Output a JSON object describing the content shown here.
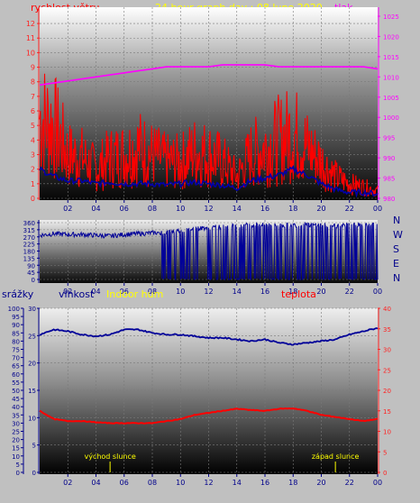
{
  "header": {
    "left_label": "rychlost větru",
    "title": "24 hour graph day : 08 June 2020",
    "right_label": "tlak"
  },
  "colors": {
    "background": "#c0c0c0",
    "wind": "#ff0000",
    "gust_line": "#0000aa",
    "pressure": "#ff00ff",
    "title": "#ffff00",
    "direction": "#000099",
    "temperature": "#ff0000",
    "humidity": "#000099",
    "axis_blue": "#00008b",
    "tick_red": "#ff2222",
    "sun": "#ffff00"
  },
  "time_axis": {
    "ticks": [
      "02",
      "04",
      "06",
      "08",
      "10",
      "12",
      "14",
      "16",
      "18",
      "20",
      "22",
      "00"
    ]
  },
  "chart_data": [
    {
      "type": "line",
      "xlabel": "",
      "ylabel": "rychlost větru",
      "yticks_left": [
        "0",
        "1",
        "2",
        "3",
        "4",
        "5",
        "6",
        "7",
        "8",
        "9",
        "10",
        "11",
        "12"
      ],
      "yticks_right": [
        "980",
        "985",
        "990",
        "995",
        "1000",
        "1005",
        "1010",
        "1015",
        "1020",
        "1025"
      ],
      "ylim": [
        0,
        12.5
      ],
      "y2lim": [
        980,
        1025
      ],
      "x": [
        0,
        1,
        2,
        3,
        4,
        5,
        6,
        7,
        8,
        9,
        10,
        11,
        12,
        13,
        14,
        15,
        16,
        17,
        18,
        19,
        20,
        21,
        22,
        23,
        24
      ],
      "series": [
        {
          "name": "rychlost větru",
          "values": [
            5.5,
            5.0,
            3.0,
            2.8,
            2.0,
            2.8,
            3.0,
            3.5,
            3.0,
            2.5,
            2.5,
            3.2,
            3.0,
            2.5,
            1.5,
            3.0,
            3.5,
            4.0,
            4.5,
            3.5,
            2.5,
            1.5,
            1.0,
            0.8,
            0.5
          ]
        },
        {
          "name": "nárazy",
          "values": [
            2.0,
            1.5,
            1.2,
            1.2,
            1.0,
            1.1,
            1.0,
            1.0,
            1.0,
            0.9,
            1.0,
            1.1,
            1.0,
            0.9,
            0.7,
            1.2,
            1.4,
            1.6,
            2.0,
            1.6,
            1.0,
            0.6,
            0.4,
            0.4,
            0.3
          ]
        },
        {
          "name": "tlak",
          "values": [
            1008,
            1008.5,
            1009,
            1009.5,
            1010,
            1010.5,
            1011,
            1011.5,
            1012,
            1012.5,
            1012.5,
            1012.5,
            1012.5,
            1013,
            1013,
            1013,
            1013,
            1012.5,
            1012.5,
            1012.5,
            1012.5,
            1012.5,
            1012.5,
            1012.5,
            1012
          ]
        }
      ]
    },
    {
      "type": "scatter",
      "ylabel": "",
      "yticks_left": [
        "0",
        "45",
        "90",
        "135",
        "180",
        "225",
        "270",
        "315",
        "360"
      ],
      "compass_labels": [
        "N",
        "W",
        "S",
        "E",
        "N"
      ],
      "ylim": [
        0,
        360
      ],
      "x": [
        0,
        1,
        2,
        3,
        4,
        5,
        6,
        7,
        8,
        9,
        10,
        11,
        12,
        13,
        14,
        15,
        16,
        17,
        18,
        19,
        20,
        21,
        22,
        23,
        24
      ],
      "series": [
        {
          "name": "směr větru",
          "values": [
            280,
            290,
            285,
            285,
            280,
            275,
            285,
            290,
            295,
            300,
            310,
            320,
            330,
            335,
            340,
            345,
            345,
            340,
            345,
            345,
            345,
            340,
            345,
            345,
            345
          ]
        }
      ]
    },
    {
      "type": "line",
      "yticks_left_a": [
        "0",
        "5",
        "10",
        "15",
        "20",
        "25",
        "30",
        "35",
        "40",
        "45",
        "50",
        "55",
        "60",
        "65",
        "70",
        "75",
        "80",
        "85",
        "90",
        "95",
        "100"
      ],
      "yticks_left_b": [
        "0",
        "5",
        "10",
        "15",
        "20",
        "25",
        "30"
      ],
      "yticks_right": [
        "0",
        "5",
        "10",
        "15",
        "20",
        "25",
        "30",
        "35",
        "40"
      ],
      "labels": {
        "left_a": "srážky",
        "left_b": "vlhkost",
        "middle": "Indoor hum",
        "right": "teplota"
      },
      "ylim": [
        0,
        100
      ],
      "y2lim": [
        0,
        40
      ],
      "x": [
        0,
        1,
        2,
        3,
        4,
        5,
        6,
        7,
        8,
        9,
        10,
        11,
        12,
        13,
        14,
        15,
        16,
        17,
        18,
        19,
        20,
        21,
        22,
        23,
        24
      ],
      "series": [
        {
          "name": "vlhkost",
          "values": [
            84,
            87,
            86,
            84,
            83,
            84,
            87,
            87,
            85,
            84,
            84,
            83,
            82,
            82,
            81,
            80,
            81,
            79,
            78,
            79,
            80,
            81,
            84,
            86,
            88
          ]
        },
        {
          "name": "teplota",
          "values": [
            15,
            13,
            12.5,
            12.5,
            12.2,
            12,
            12,
            12,
            12,
            12.5,
            13,
            14,
            14.5,
            15,
            15.5,
            15.2,
            15,
            15.5,
            15.6,
            15,
            14,
            13.5,
            13,
            12.5,
            13
          ]
        }
      ],
      "annotations": [
        {
          "text": "východ slunce",
          "x": 5
        },
        {
          "text": "západ slunce",
          "x": 21
        }
      ]
    }
  ]
}
